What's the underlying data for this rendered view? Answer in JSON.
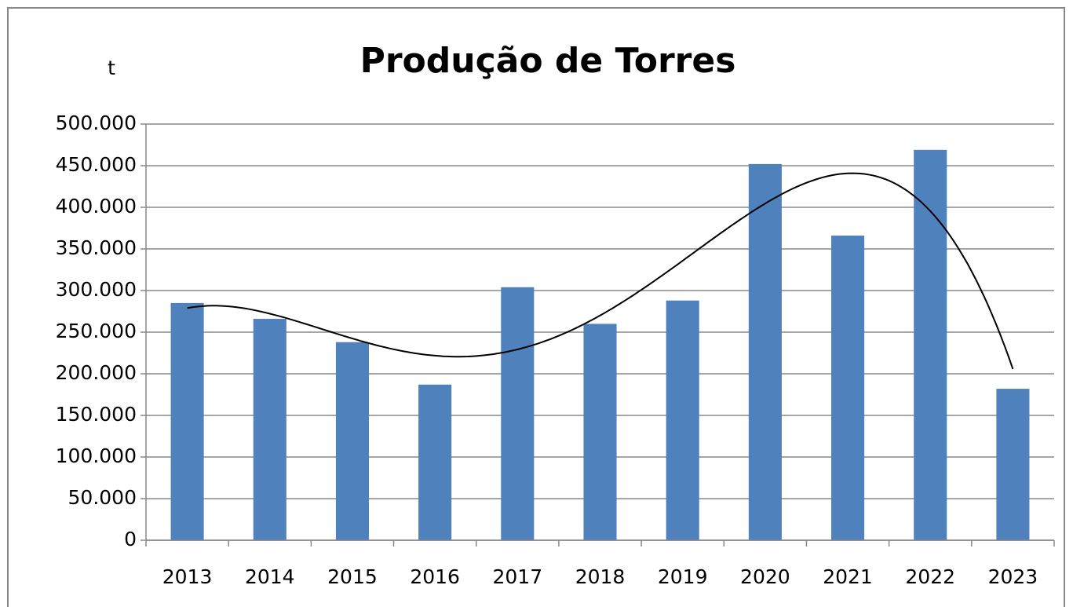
{
  "chart_data": {
    "type": "bar",
    "title": "Produção de Torres",
    "y_label": "t",
    "categories": [
      "2013",
      "2014",
      "2015",
      "2016",
      "2017",
      "2018",
      "2019",
      "2020",
      "2021",
      "2022",
      "2023"
    ],
    "values": [
      285000,
      266000,
      238000,
      187000,
      304000,
      260000,
      288000,
      452000,
      366000,
      469000,
      182000
    ],
    "color": "#4f81bd",
    "ylim": [
      0,
      500000
    ],
    "yticks": [
      0,
      {
        "value": 50000,
        "label": "50.000"
      },
      {
        "value": 100000,
        "label": "100.000"
      },
      {
        "value": 150000,
        "label": "150.000"
      },
      {
        "value": 200000,
        "label": "200.000"
      },
      {
        "value": 250000,
        "label": "250.000"
      },
      {
        "value": 300000,
        "label": "300.000"
      },
      {
        "value": 350000,
        "label": "350.000"
      },
      {
        "value": 400000,
        "label": "400.000"
      },
      {
        "value": 450000,
        "label": "450.000"
      },
      {
        "value": 500000,
        "label": "500.000"
      }
    ],
    "grid": true,
    "trendline": "polynomial"
  }
}
